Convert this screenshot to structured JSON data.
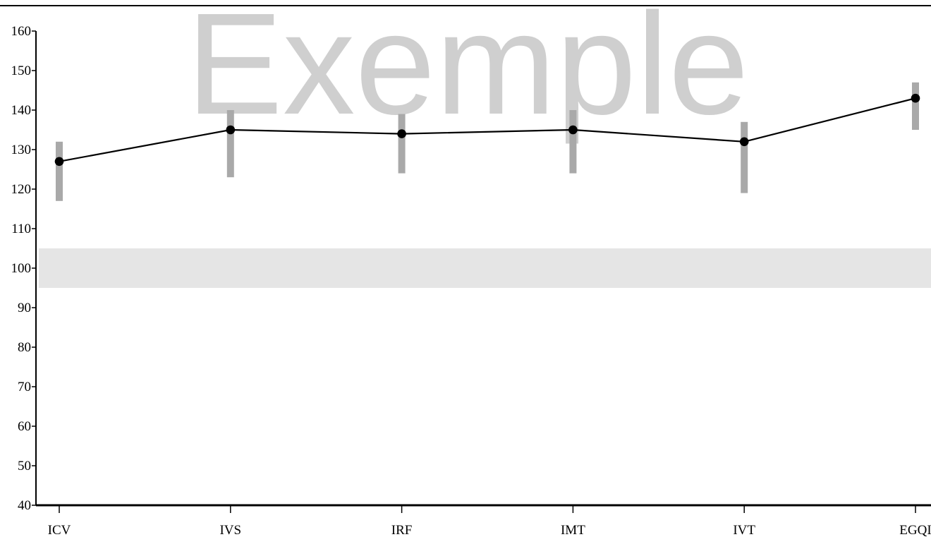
{
  "chart_data": {
    "type": "line",
    "watermark": "Exemple",
    "categories": [
      "ICV",
      "IVS",
      "IRF",
      "IMT",
      "IVT",
      "EGQI"
    ],
    "series": [
      {
        "values": [
          127,
          135,
          134,
          135,
          132,
          143
        ],
        "ci_low": [
          117,
          123,
          124,
          124,
          119,
          135
        ],
        "ci_high": [
          132,
          140,
          139,
          140,
          137,
          147
        ]
      }
    ],
    "reference_band": [
      95,
      105
    ],
    "ylim": [
      40,
      160
    ],
    "yticks": [
      40,
      50,
      60,
      70,
      80,
      90,
      100,
      110,
      120,
      130,
      140,
      150,
      160
    ],
    "title": "",
    "xlabel": "",
    "ylabel": "",
    "grid": false,
    "colors": {
      "line": "#000000",
      "marker": "#000000",
      "error_bar": "#a9a9a9",
      "reference_band": "#e5e5e5",
      "watermark": "#cfcfcf",
      "axis": "#000000"
    }
  }
}
